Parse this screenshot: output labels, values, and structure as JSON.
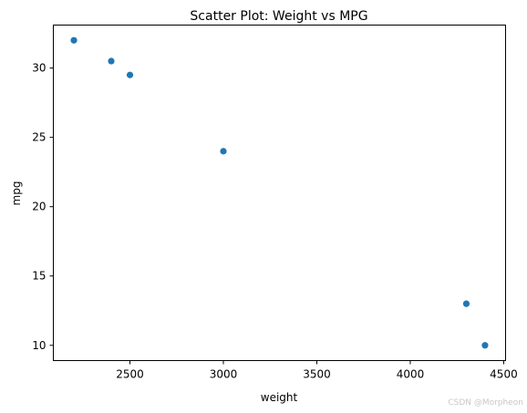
{
  "chart_data": {
    "type": "scatter",
    "title": "Scatter Plot: Weight vs MPG",
    "xlabel": "weight",
    "ylabel": "mpg",
    "x": [
      2200,
      2400,
      2500,
      3000,
      4300,
      4400
    ],
    "y": [
      32,
      30.5,
      29.5,
      24,
      13,
      10
    ],
    "xlim": [
      2090,
      4510
    ],
    "ylim": [
      8.9,
      33.1
    ],
    "xticks": [
      2500,
      3000,
      3500,
      4000,
      4500
    ],
    "xtick_labels": [
      "2500",
      "3000",
      "3500",
      "4000",
      "4500"
    ],
    "yticks": [
      10,
      15,
      20,
      25,
      30
    ],
    "ytick_labels": [
      "10",
      "15",
      "20",
      "25",
      "30"
    ],
    "grid": false,
    "point_color": "#1f77b4"
  },
  "watermark": "CSDN @Morpheon"
}
